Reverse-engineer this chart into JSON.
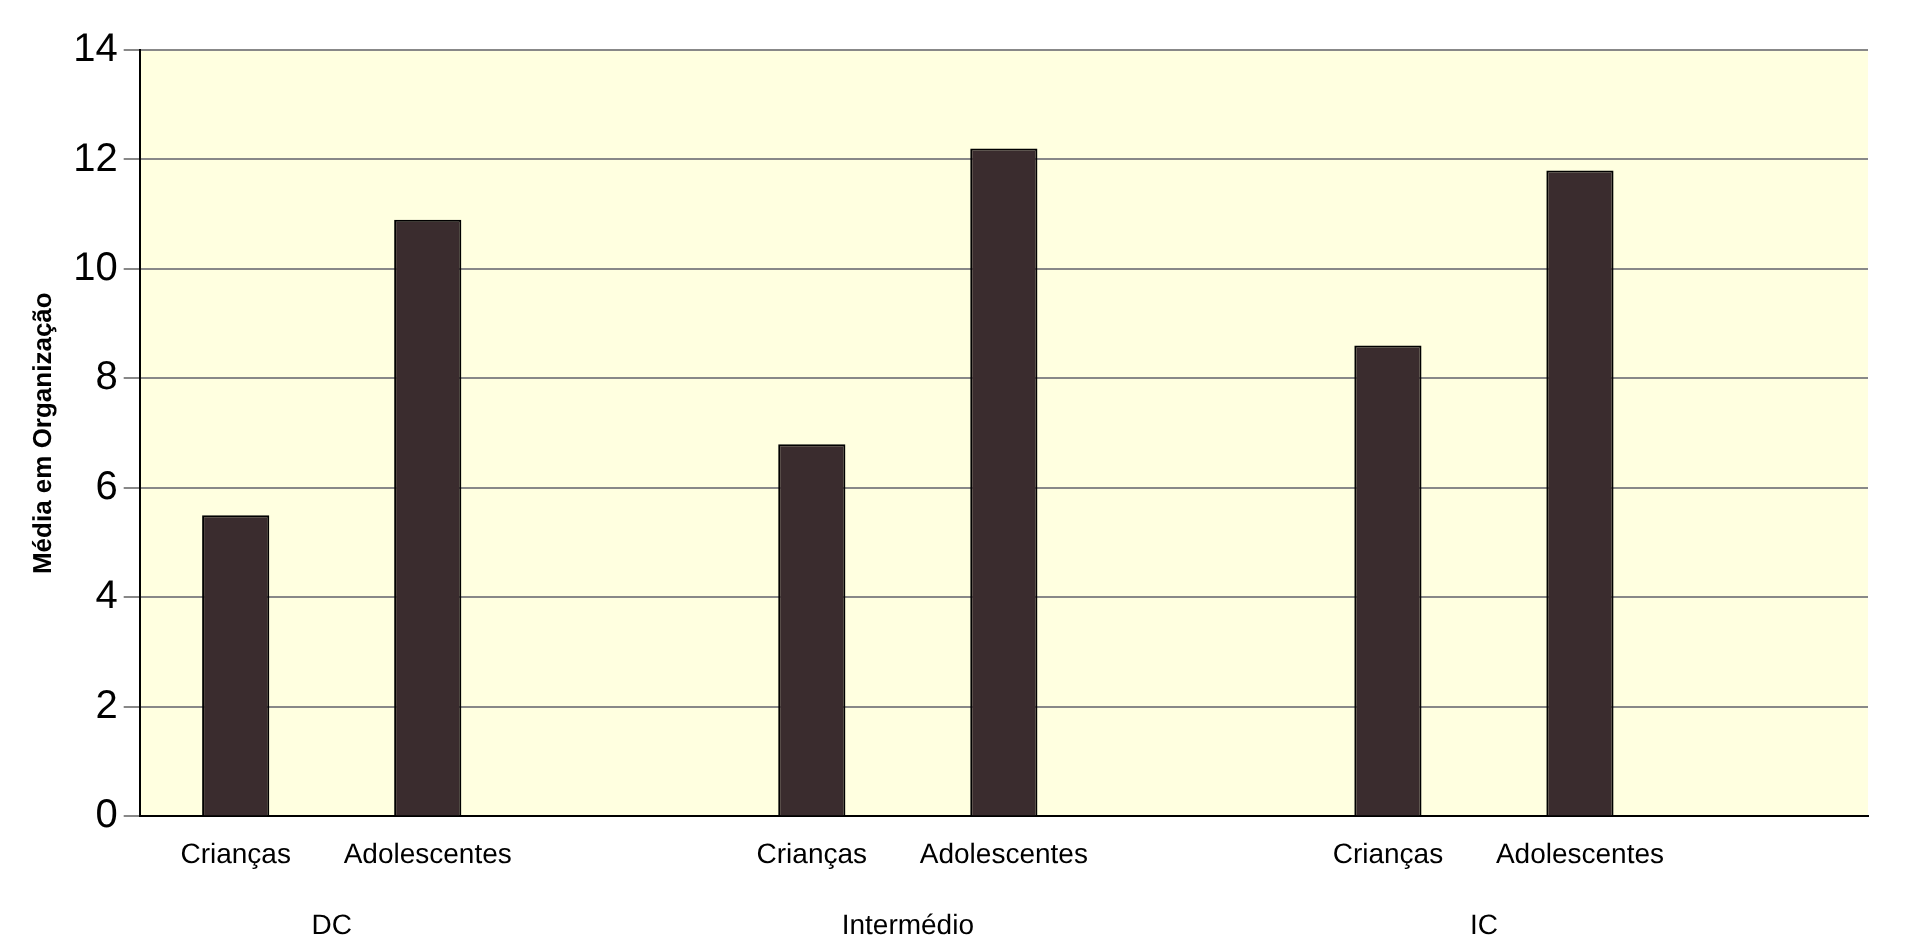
{
  "chart_data": {
    "type": "bar",
    "ylabel": "Média em Organização",
    "categories": [
      "Crianças",
      "Adolescentes",
      null,
      "Crianças",
      "Adolescentes",
      null,
      "Crianças",
      "Adolescentes",
      null
    ],
    "values": [
      5.5,
      10.9,
      null,
      6.8,
      12.2,
      null,
      8.6,
      11.8,
      null
    ],
    "color": "#3a2c2e",
    "ylim": [
      0,
      14
    ],
    "yticks": [
      0,
      2,
      4,
      6,
      8,
      10,
      12,
      14
    ],
    "grid": "y",
    "annotations": [
      "DC",
      "Intermédio",
      "IC"
    ]
  }
}
